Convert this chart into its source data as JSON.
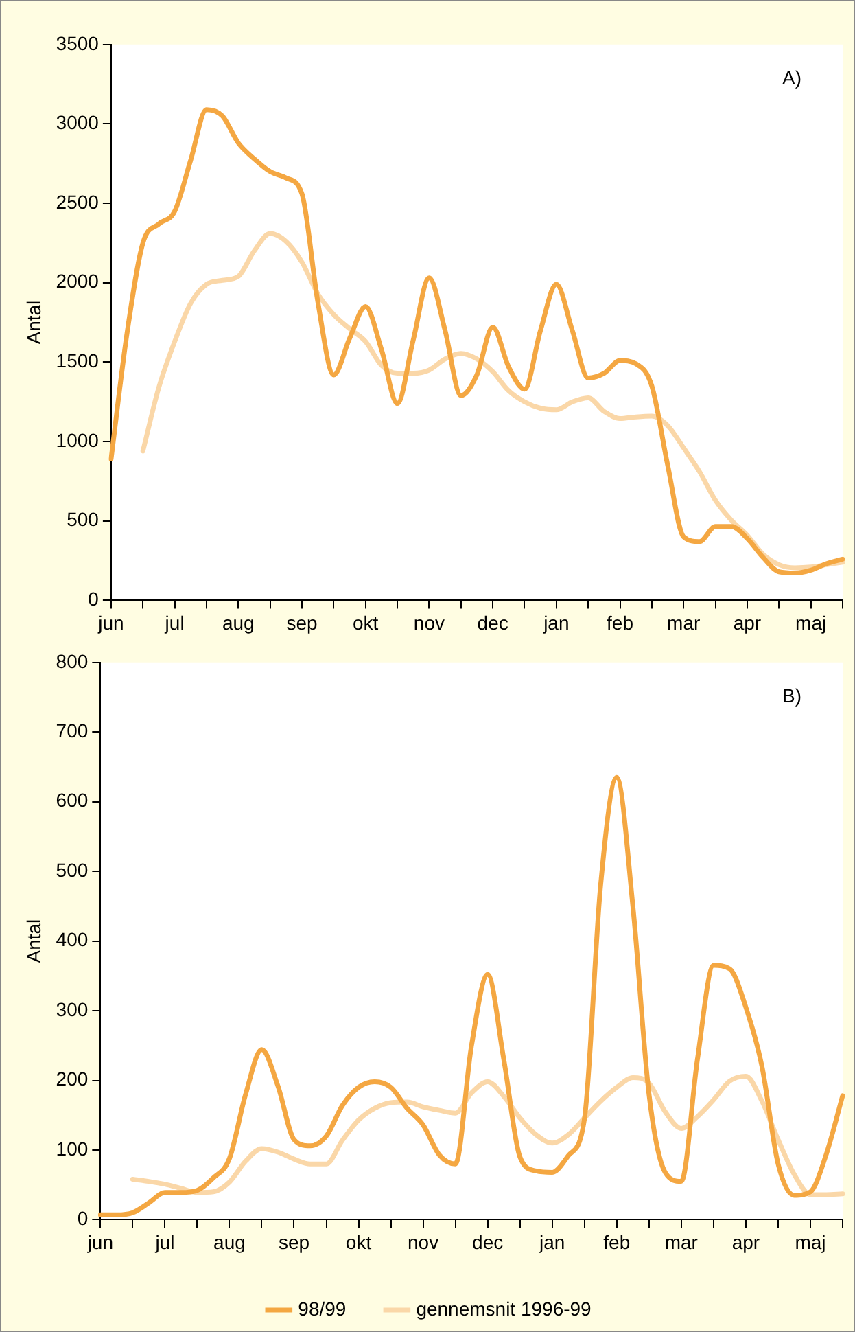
{
  "chart_data": [
    {
      "type": "line",
      "ylabel": "Antal",
      "annotations": [
        "A)"
      ],
      "categories": [
        "jun",
        null,
        null,
        null,
        "jul",
        null,
        null,
        null,
        "aug",
        null,
        null,
        null,
        "sep",
        null,
        null,
        null,
        "okt",
        null,
        null,
        null,
        "nov",
        null,
        null,
        null,
        "dec",
        null,
        null,
        null,
        "jan",
        null,
        null,
        null,
        "feb",
        null,
        null,
        null,
        "mar",
        null,
        null,
        null,
        "apr",
        null,
        null,
        null,
        "maj",
        null,
        null
      ],
      "ylim": [
        0,
        3500
      ],
      "yticks": [
        0,
        500,
        1000,
        1500,
        2000,
        2500,
        3000,
        3500
      ],
      "grid": false,
      "legend": false,
      "marker": "none",
      "line_style": "solid",
      "series": [
        {
          "color": "#f4a742",
          "values": [
            890,
            1680,
            2250,
            2370,
            2450,
            2770,
            3090,
            3050,
            2880,
            2780,
            2700,
            2660,
            2560,
            1880,
            1420,
            1650,
            1850,
            1580,
            1240,
            1640,
            2030,
            1700,
            1290,
            1420,
            1720,
            1470,
            1330,
            1700,
            1990,
            1700,
            1400,
            1430,
            1510,
            1490,
            1350,
            850,
            400,
            370,
            465,
            465,
            390,
            270,
            180,
            172,
            190,
            232,
            260
          ]
        },
        {
          "color": "#fad7a8",
          "values": [
            null,
            null,
            940,
            1340,
            1630,
            1870,
            1990,
            2015,
            2040,
            2200,
            2310,
            2260,
            2130,
            1930,
            1800,
            1710,
            1630,
            1480,
            1430,
            1430,
            1450,
            1520,
            1555,
            1520,
            1440,
            1320,
            1250,
            1210,
            1200,
            1250,
            1275,
            1190,
            1145,
            1155,
            1160,
            1100,
            960,
            810,
            630,
            505,
            410,
            290,
            225,
            205,
            210,
            225,
            240
          ]
        }
      ]
    },
    {
      "type": "line",
      "ylabel": "Antal",
      "annotations": [
        "B)"
      ],
      "categories": [
        "jun",
        null,
        null,
        null,
        "jul",
        null,
        null,
        null,
        "aug",
        null,
        null,
        null,
        "sep",
        null,
        null,
        null,
        "okt",
        null,
        null,
        null,
        "nov",
        null,
        null,
        null,
        "dec",
        null,
        null,
        null,
        "jan",
        null,
        null,
        null,
        "feb",
        null,
        null,
        null,
        "mar",
        null,
        null,
        null,
        "apr",
        null,
        null,
        null,
        "maj",
        null,
        null
      ],
      "ylim": [
        0,
        800
      ],
      "yticks": [
        0,
        100,
        200,
        300,
        400,
        500,
        600,
        700,
        800
      ],
      "grid": false,
      "legend": "bottom",
      "marker": "none",
      "line_style": "solid",
      "series": [
        {
          "name": "98/99",
          "color": "#f4a742",
          "values": [
            7,
            7,
            10,
            24,
            39,
            39,
            42,
            60,
            88,
            180,
            244,
            192,
            115,
            106,
            120,
            164,
            190,
            198,
            190,
            160,
            136,
            93,
            80,
            250,
            352,
            230,
            90,
            70,
            68,
            92,
            145,
            480,
            635,
            450,
            180,
            68,
            55,
            230,
            365,
            360,
            305,
            220,
            80,
            35,
            40,
            95,
            178
          ]
        },
        {
          "name": "gennemsnit 1996-99",
          "color": "#fad7a8",
          "values": [
            null,
            null,
            58,
            55,
            51,
            45,
            39,
            40,
            54,
            84,
            102,
            97,
            87,
            80,
            80,
            114,
            143,
            160,
            168,
            169,
            162,
            157,
            153,
            182,
            198,
            177,
            146,
            122,
            110,
            122,
            146,
            170,
            190,
            204,
            196,
            155,
            131,
            148,
            172,
            199,
            206,
            170,
            115,
            65,
            36,
            36,
            37
          ]
        }
      ]
    }
  ]
}
